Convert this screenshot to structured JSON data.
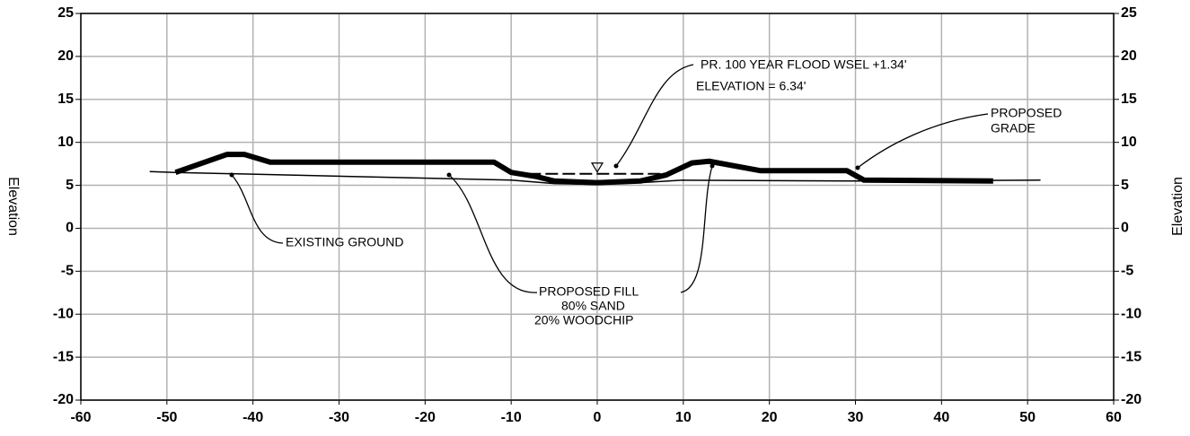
{
  "chart_data": {
    "type": "line",
    "ylabel": "Elevation",
    "y2label": "Elevation",
    "xlim": [
      -60,
      60
    ],
    "xticks": [
      -60,
      -50,
      -40,
      -30,
      -20,
      -10,
      0,
      10,
      20,
      30,
      40,
      50,
      60
    ],
    "ylim": [
      -20,
      25
    ],
    "yticks": [
      -20,
      -15,
      -10,
      -5,
      0,
      5,
      10,
      15,
      20,
      25
    ],
    "y2lim": [
      -20,
      25
    ],
    "y2ticks": [
      -20,
      -15,
      -10,
      -5,
      0,
      5,
      10,
      15,
      20,
      25
    ],
    "grid": true,
    "series": [
      {
        "color": "#000000",
        "x": [
          -49,
          -43,
          -41,
          -38,
          -12,
          -10,
          -7,
          -5,
          0,
          5,
          8,
          11,
          13,
          19,
          29,
          31,
          46
        ],
        "values": [
          6.5,
          8.6,
          8.6,
          7.7,
          7.7,
          6.5,
          6.0,
          5.5,
          5.3,
          5.5,
          6.2,
          7.6,
          7.8,
          6.7,
          6.7,
          5.6,
          5.5
        ]
      },
      {
        "color": "#000000",
        "x": [
          -52,
          -49,
          -10,
          -5,
          0,
          5,
          10,
          30,
          51.5
        ],
        "values": [
          6.6,
          6.5,
          5.6,
          5.2,
          5.1,
          5.3,
          5.6,
          5.5,
          5.6
        ]
      },
      {
        "color": "#000000",
        "x": [
          -8,
          8
        ],
        "values": [
          6.34,
          6.34
        ]
      }
    ],
    "annotations": [
      "PR. 100 YEAR FLOOD WSEL +1.34'",
      "ELEVATION = 6.34'",
      "PROPOSED",
      "GRADE",
      "EXISTING GROUND",
      "PROPOSED FILL",
      "80% SAND",
      "20% WOODCHIP"
    ]
  }
}
